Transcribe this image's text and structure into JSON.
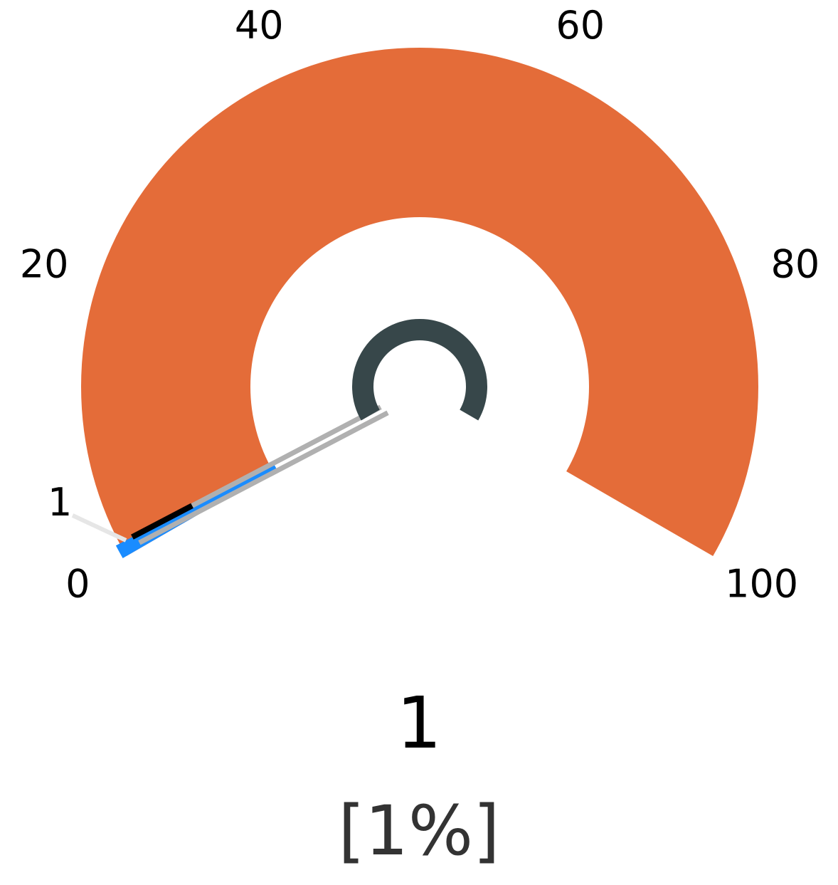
{
  "chart_data": {
    "type": "gauge",
    "min": 0,
    "max": 100,
    "value": 1,
    "value_label": "1",
    "percent_label": "[1%]",
    "ticks": [
      {
        "value": 0,
        "label": "0"
      },
      {
        "value": 20,
        "label": "20"
      },
      {
        "value": 40,
        "label": "40"
      },
      {
        "value": 60,
        "label": "60"
      },
      {
        "value": 80,
        "label": "80"
      },
      {
        "value": 100,
        "label": "100"
      }
    ],
    "value_marker_label": "1",
    "colors": {
      "band": "#E46C39",
      "value_fill": "#1A8CFF",
      "needle": "#000000",
      "needle_shadow": "#B0B0B0",
      "hub": "#37474A",
      "leader_line": "#E6E6E6"
    }
  }
}
